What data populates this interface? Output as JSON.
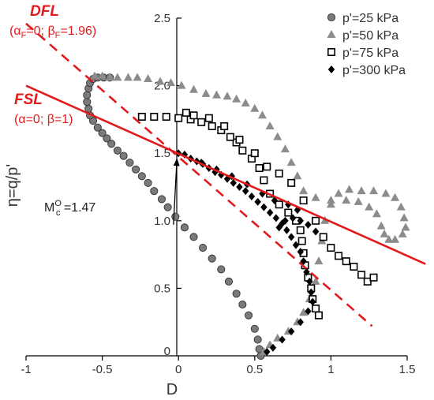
{
  "chart_data": {
    "type": "scatter",
    "xlabel": "D",
    "ylabel": "η=q/p'",
    "xlim": [
      -1,
      1.5
    ],
    "ylim": [
      0,
      2.5
    ],
    "x_ticks": [
      -1,
      -0.5,
      0,
      0.5,
      1,
      1.5
    ],
    "y_ticks": [
      0.5,
      1.0,
      1.5,
      2.0,
      2.5
    ],
    "x_tick_labels": [
      "-1",
      "-0.5",
      "0",
      "0.5",
      "1",
      "1.5"
    ],
    "y_tick_labels": [
      "0.5",
      "1.0",
      "1.5",
      "2.0",
      "2.5"
    ],
    "y_zero_label": "0",
    "legend_position": "top-right",
    "series": [
      {
        "name": "p'=25 kPa",
        "marker": "circle",
        "color": "#7a7a7a",
        "points": [
          [
            0.54,
            0.0
          ],
          [
            0.53,
            0.05
          ],
          [
            0.52,
            0.12
          ],
          [
            0.5,
            0.2
          ],
          [
            0.46,
            0.3
          ],
          [
            0.42,
            0.38
          ],
          [
            0.38,
            0.46
          ],
          [
            0.33,
            0.55
          ],
          [
            0.28,
            0.64
          ],
          [
            0.22,
            0.72
          ],
          [
            0.16,
            0.8
          ],
          [
            0.1,
            0.88
          ],
          [
            0.04,
            0.95
          ],
          [
            -0.02,
            1.03
          ],
          [
            -0.07,
            1.1
          ],
          [
            -0.11,
            1.16
          ],
          [
            -0.16,
            1.22
          ],
          [
            -0.2,
            1.28
          ],
          [
            -0.24,
            1.33
          ],
          [
            -0.28,
            1.38
          ],
          [
            -0.32,
            1.43
          ],
          [
            -0.36,
            1.48
          ],
          [
            -0.4,
            1.52
          ],
          [
            -0.44,
            1.57
          ],
          [
            -0.47,
            1.61
          ],
          [
            -0.5,
            1.65
          ],
          [
            -0.53,
            1.69
          ],
          [
            -0.56,
            1.74
          ],
          [
            -0.58,
            1.78
          ],
          [
            -0.59,
            1.83
          ],
          [
            -0.6,
            1.88
          ],
          [
            -0.6,
            1.93
          ],
          [
            -0.59,
            1.98
          ],
          [
            -0.58,
            2.02
          ],
          [
            -0.56,
            2.05
          ],
          [
            -0.53,
            2.06
          ],
          [
            -0.49,
            2.06
          ],
          [
            -0.45,
            2.06
          ]
        ]
      },
      {
        "name": "p'=50 kPa",
        "marker": "triangle",
        "color": "#8c8c8c",
        "points": [
          [
            0.56,
            0.03
          ],
          [
            0.6,
            0.08
          ],
          [
            0.65,
            0.13
          ],
          [
            0.72,
            0.18
          ],
          [
            0.78,
            0.25
          ],
          [
            0.82,
            0.32
          ],
          [
            0.86,
            0.42
          ],
          [
            0.9,
            0.55
          ],
          [
            0.92,
            0.7
          ],
          [
            0.94,
            0.85
          ],
          [
            0.96,
            1.0
          ],
          [
            1.0,
            1.12
          ],
          [
            1.05,
            1.2
          ],
          [
            1.12,
            1.23
          ],
          [
            1.2,
            1.22
          ],
          [
            1.28,
            1.22
          ],
          [
            1.36,
            1.2
          ],
          [
            1.42,
            1.17
          ],
          [
            1.46,
            1.1
          ],
          [
            1.48,
            1.02
          ],
          [
            1.49,
            0.95
          ],
          [
            1.47,
            0.9
          ],
          [
            1.42,
            0.86
          ],
          [
            1.38,
            0.86
          ],
          [
            1.35,
            0.9
          ],
          [
            1.33,
            0.96
          ],
          [
            1.3,
            1.05
          ],
          [
            1.25,
            1.1
          ],
          [
            1.18,
            1.14
          ],
          [
            1.1,
            1.15
          ],
          [
            1.0,
            1.15
          ],
          [
            0.9,
            1.17
          ],
          [
            0.82,
            1.22
          ],
          [
            0.78,
            1.33
          ],
          [
            0.74,
            1.43
          ],
          [
            0.7,
            1.53
          ],
          [
            0.65,
            1.62
          ],
          [
            0.6,
            1.7
          ],
          [
            0.55,
            1.78
          ],
          [
            0.5,
            1.83
          ],
          [
            0.44,
            1.87
          ],
          [
            0.38,
            1.9
          ],
          [
            0.32,
            1.92
          ],
          [
            0.25,
            1.93
          ],
          [
            0.18,
            1.94
          ],
          [
            0.1,
            1.97
          ],
          [
            0.02,
            2.0
          ],
          [
            -0.05,
            2.02
          ],
          [
            -0.12,
            2.03
          ],
          [
            -0.2,
            2.05
          ],
          [
            -0.27,
            2.06
          ],
          [
            -0.33,
            2.06
          ],
          [
            -0.4,
            2.06
          ],
          [
            -0.45,
            2.06
          ],
          [
            -0.5,
            2.07
          ],
          [
            -0.55,
            2.07
          ]
        ]
      },
      {
        "name": "p'=75 kPa",
        "marker": "square",
        "color": "#000000",
        "points": [
          [
            0.92,
            0.3
          ],
          [
            0.9,
            0.35
          ],
          [
            0.88,
            0.42
          ],
          [
            0.87,
            0.5
          ],
          [
            0.85,
            0.58
          ],
          [
            0.83,
            0.67
          ],
          [
            0.82,
            0.76
          ],
          [
            0.81,
            0.85
          ],
          [
            0.8,
            0.93
          ],
          [
            0.77,
            1.0
          ],
          [
            0.72,
            1.06
          ],
          [
            0.66,
            1.12
          ],
          [
            0.6,
            1.2
          ],
          [
            0.56,
            1.3
          ],
          [
            0.53,
            1.39
          ],
          [
            0.48,
            1.46
          ],
          [
            0.42,
            1.52
          ],
          [
            0.38,
            1.58
          ],
          [
            0.34,
            1.62
          ],
          [
            0.28,
            1.67
          ],
          [
            0.22,
            1.7
          ],
          [
            0.15,
            1.73
          ],
          [
            0.08,
            1.75
          ],
          [
            0.0,
            1.76
          ],
          [
            -0.08,
            1.77
          ],
          [
            -0.16,
            1.77
          ],
          [
            -0.24,
            1.77
          ],
          [
            0.05,
            1.8
          ],
          [
            0.1,
            1.78
          ],
          [
            0.2,
            1.76
          ],
          [
            0.3,
            1.7
          ],
          [
            0.4,
            1.6
          ],
          [
            0.5,
            1.5
          ],
          [
            0.58,
            1.4
          ],
          [
            0.66,
            1.35
          ],
          [
            0.74,
            1.28
          ],
          [
            0.82,
            1.15
          ],
          [
            0.9,
            1.0
          ],
          [
            0.95,
            0.88
          ],
          [
            1.0,
            0.8
          ],
          [
            1.05,
            0.74
          ],
          [
            1.1,
            0.7
          ],
          [
            1.15,
            0.66
          ],
          [
            1.2,
            0.6
          ],
          [
            1.24,
            0.55
          ],
          [
            1.28,
            0.58
          ]
        ]
      },
      {
        "name": "p'=300 kPa",
        "marker": "diamond",
        "color": "#000000",
        "points": [
          [
            0.0,
            1.5
          ],
          [
            0.04,
            1.49
          ],
          [
            0.08,
            1.46
          ],
          [
            0.12,
            1.44
          ],
          [
            0.16,
            1.42
          ],
          [
            0.2,
            1.39
          ],
          [
            0.24,
            1.36
          ],
          [
            0.28,
            1.34
          ],
          [
            0.32,
            1.31
          ],
          [
            0.36,
            1.28
          ],
          [
            0.4,
            1.25
          ],
          [
            0.44,
            1.22
          ],
          [
            0.48,
            1.18
          ],
          [
            0.52,
            1.14
          ],
          [
            0.56,
            1.1
          ],
          [
            0.6,
            1.06
          ],
          [
            0.64,
            1.02
          ],
          [
            0.68,
            0.98
          ],
          [
            0.71,
            0.93
          ],
          [
            0.74,
            0.88
          ],
          [
            0.77,
            0.82
          ],
          [
            0.8,
            0.77
          ],
          [
            0.82,
            0.7
          ],
          [
            0.84,
            0.62
          ],
          [
            0.86,
            0.55
          ],
          [
            0.87,
            0.47
          ],
          [
            0.88,
            0.4
          ],
          [
            0.85,
            0.33
          ],
          [
            0.8,
            0.25
          ],
          [
            0.74,
            0.18
          ],
          [
            0.68,
            0.12
          ],
          [
            0.62,
            0.06
          ],
          [
            0.58,
            0.03
          ],
          [
            0.66,
            0.95
          ],
          [
            0.7,
            1.0
          ],
          [
            0.75,
            1.02
          ],
          [
            0.8,
            1.0
          ],
          [
            0.85,
            0.97
          ],
          [
            0.9,
            0.92
          ],
          [
            0.78,
            1.08
          ],
          [
            0.72,
            1.12
          ],
          [
            0.63,
            1.15
          ],
          [
            0.55,
            1.2
          ],
          [
            0.45,
            1.27
          ],
          [
            0.35,
            1.33
          ],
          [
            0.25,
            1.38
          ],
          [
            0.15,
            1.43
          ]
        ]
      }
    ],
    "lines": [
      {
        "id": "FSL",
        "style": "solid",
        "color": "#e31a1c",
        "x": [
          -1.0,
          1.62
        ],
        "y": [
          2.0,
          0.68
        ]
      },
      {
        "id": "DFL",
        "style": "dashed",
        "color": "#e31a1c",
        "x": [
          -1.0,
          1.27
        ],
        "y": [
          2.46,
          0.22
        ]
      }
    ],
    "annotations": {
      "dfl_title": "DFL",
      "dfl_params_open": "(α",
      "dfl_params_sub1": "F",
      "dfl_params_mid": "=0; β",
      "dfl_params_sub2": "F",
      "dfl_params_close": "=1.96)",
      "fsl_title": "FSL",
      "fsl_params": "(α=0; β=1)",
      "mc_main": "M",
      "mc_sup": "O",
      "mc_sub": "c",
      "mc_value": " =1.47",
      "mc_point": [
        0.0,
        1.47
      ],
      "mc_label_at": [
        -0.68,
        1.0
      ]
    }
  }
}
